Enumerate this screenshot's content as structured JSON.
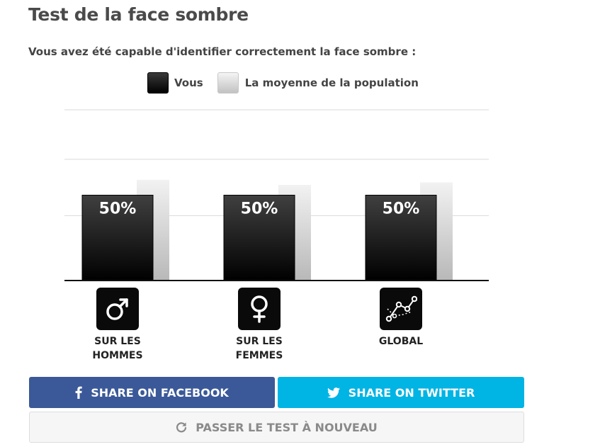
{
  "title": "Test de la face sombre",
  "subtitle": "Vous avez été capable d'identifier correctement la face sombre :",
  "legend": {
    "you": "Vous",
    "population": "La moyenne de la population"
  },
  "colors": {
    "facebook": "#3b5998",
    "twitter": "#00b4e4",
    "you_bar": "#000000",
    "population_bar": "#c8c8c8"
  },
  "chart_data": {
    "type": "bar",
    "categories": [
      "SUR LES HOMMES",
      "SUR LES FEMMES",
      "GLOBAL"
    ],
    "series": [
      {
        "name": "Vous",
        "values": [
          50,
          50,
          50
        ],
        "labels": [
          "50%",
          "50%",
          "50%"
        ]
      },
      {
        "name": "La moyenne de la population",
        "values": [
          59,
          56,
          57.5
        ]
      }
    ],
    "ylim": [
      0,
      100
    ],
    "grid": true,
    "legend_position": "top-center"
  },
  "categories": [
    {
      "line1": "SUR LES",
      "line2": "HOMMES",
      "icon": "male-symbol-icon"
    },
    {
      "line1": "SUR LES",
      "line2": "FEMMES",
      "icon": "female-symbol-icon"
    },
    {
      "line1": "GLOBAL",
      "line2": "",
      "icon": "scatter-line-icon"
    }
  ],
  "buttons": {
    "facebook": "SHARE ON FACEBOOK",
    "twitter": "SHARE ON TWITTER",
    "retry": "PASSER LE TEST À NOUVEAU"
  }
}
